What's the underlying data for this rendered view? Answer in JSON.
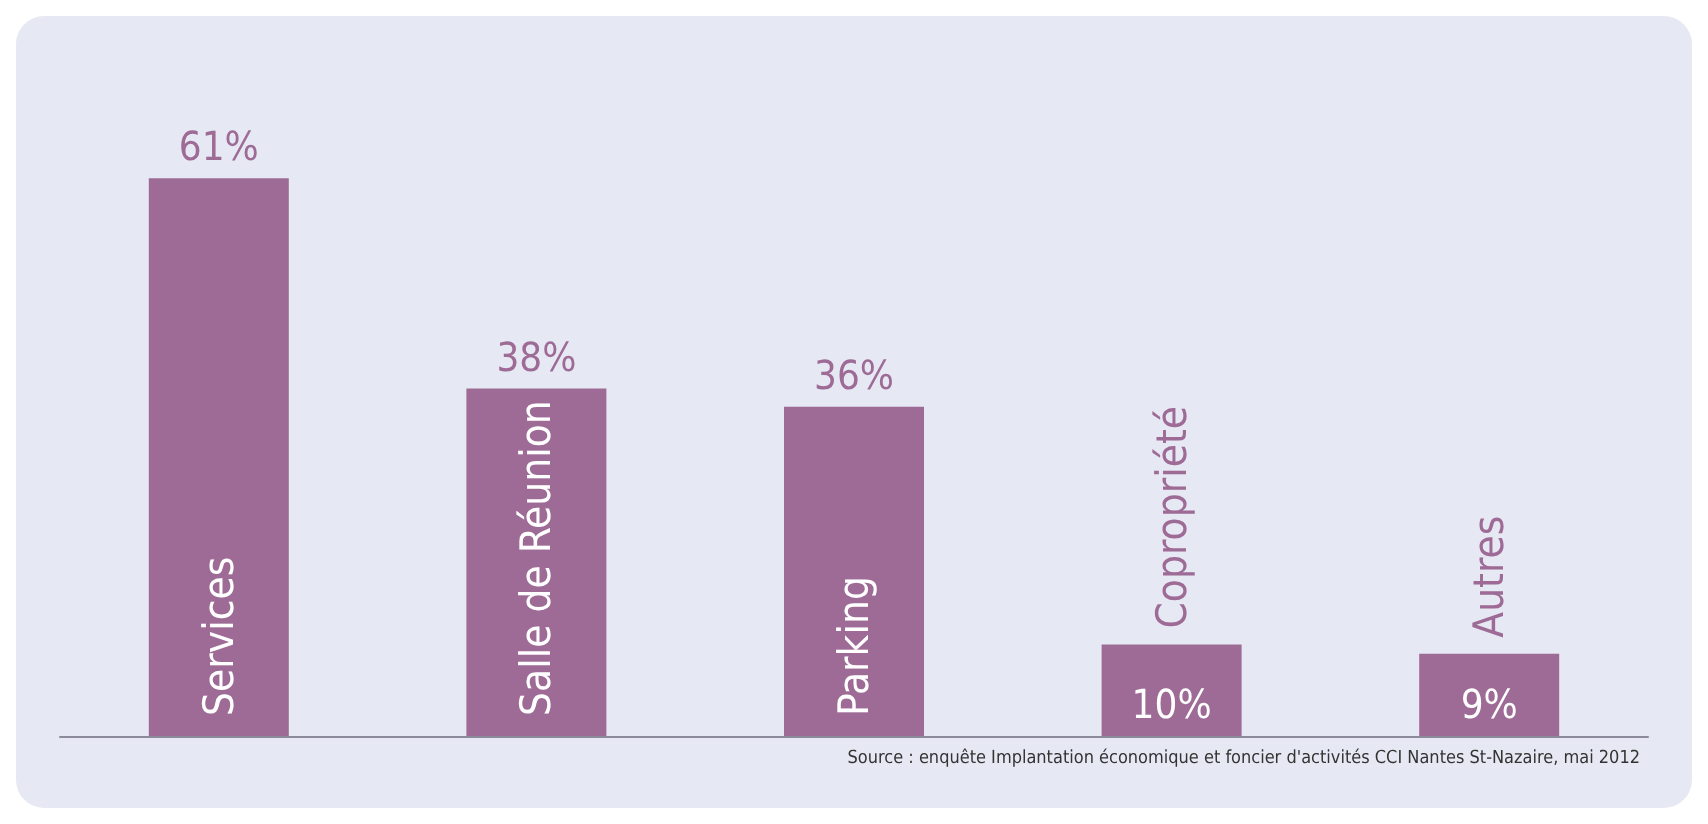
{
  "chart_data": {
    "type": "bar",
    "categories": [
      "Services",
      "Salle de Réunion",
      "Parking",
      "Copropriété",
      "Autres"
    ],
    "values": [
      61,
      38,
      36,
      10,
      9
    ],
    "value_labels": [
      "61%",
      "38%",
      "36%",
      "10%",
      "9%"
    ],
    "color": "#9e6b96",
    "annotations": [
      "Source : enquête Implantation économique et foncier d'activités CCI Nantes St-Nazaire, mai 2012"
    ]
  }
}
